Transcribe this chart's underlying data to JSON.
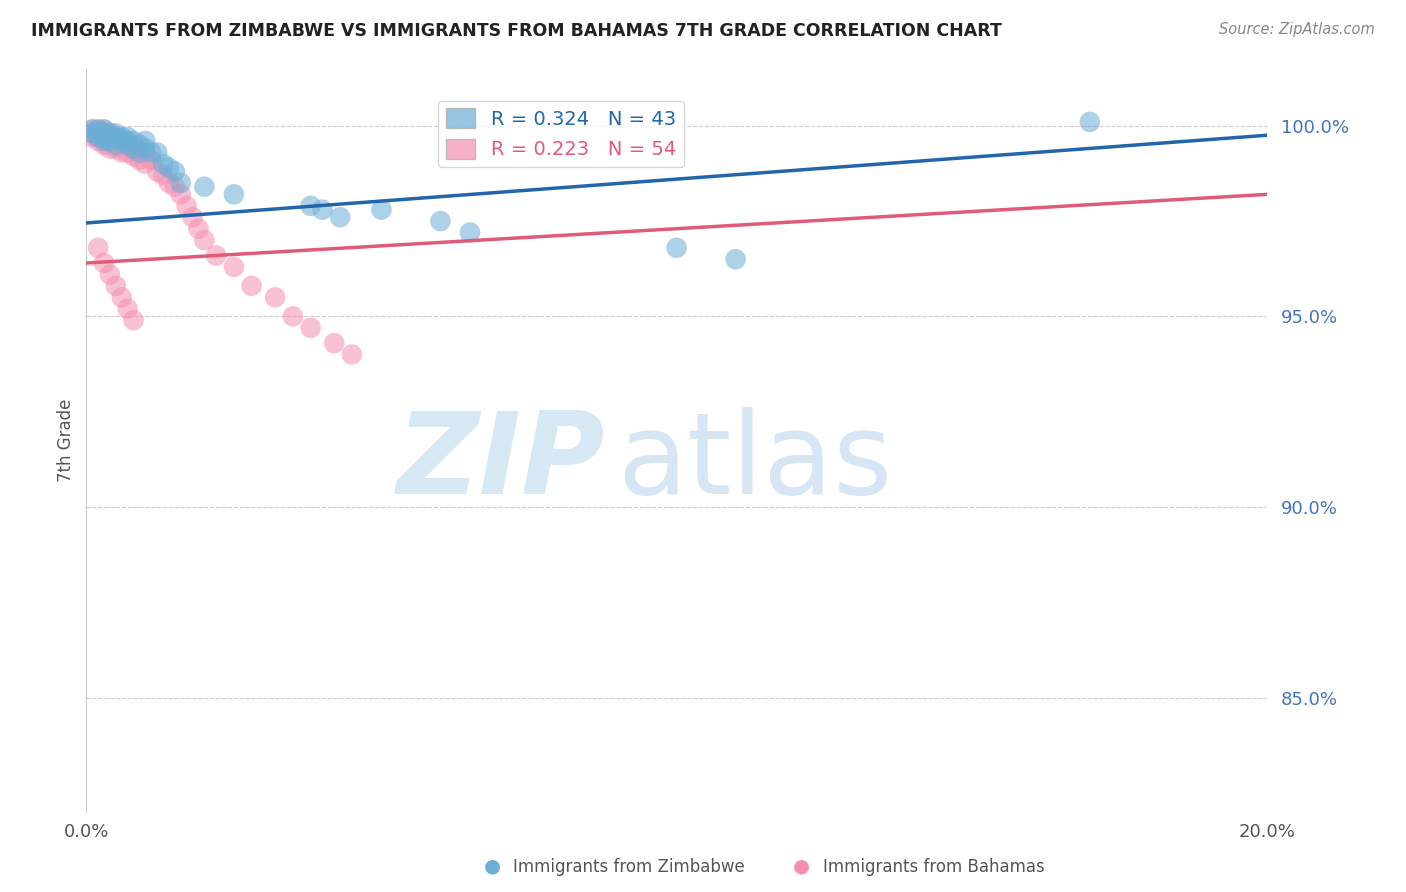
{
  "title": "IMMIGRANTS FROM ZIMBABWE VS IMMIGRANTS FROM BAHAMAS 7TH GRADE CORRELATION CHART",
  "source": "Source: ZipAtlas.com",
  "ylabel": "7th Grade",
  "color_zim": "#6baed6",
  "color_bah": "#f48fb1",
  "line_color_zim": "#2166ac",
  "line_color_bah": "#e05a7a",
  "legend_zim": "R = 0.324   N = 43",
  "legend_bah": "R = 0.223   N = 54",
  "xlim": [
    0.0,
    0.2
  ],
  "ylim": [
    0.82,
    1.015
  ],
  "yticks": [
    0.85,
    0.9,
    0.95,
    1.0
  ],
  "ytick_labels": [
    "85.0%",
    "90.0%",
    "95.0%",
    "100.0%"
  ],
  "zim_x": [
    0.001,
    0.001,
    0.002,
    0.002,
    0.002,
    0.003,
    0.003,
    0.003,
    0.003,
    0.004,
    0.004,
    0.004,
    0.005,
    0.005,
    0.005,
    0.006,
    0.006,
    0.007,
    0.007,
    0.007,
    0.008,
    0.008,
    0.009,
    0.009,
    0.01,
    0.01,
    0.011,
    0.012,
    0.013,
    0.014,
    0.015,
    0.016,
    0.02,
    0.025,
    0.038,
    0.04,
    0.043,
    0.05,
    0.06,
    0.065,
    0.1,
    0.11,
    0.17
  ],
  "zim_y": [
    0.999,
    0.998,
    0.999,
    0.998,
    0.997,
    0.999,
    0.998,
    0.997,
    0.996,
    0.998,
    0.997,
    0.996,
    0.998,
    0.997,
    0.995,
    0.997,
    0.996,
    0.997,
    0.996,
    0.995,
    0.996,
    0.994,
    0.995,
    0.993,
    0.996,
    0.994,
    0.993,
    0.993,
    0.99,
    0.989,
    0.988,
    0.985,
    0.984,
    0.982,
    0.979,
    0.978,
    0.976,
    0.978,
    0.975,
    0.972,
    0.968,
    0.965,
    1.001
  ],
  "bah_x": [
    0.001,
    0.001,
    0.001,
    0.002,
    0.002,
    0.002,
    0.002,
    0.003,
    0.003,
    0.003,
    0.003,
    0.004,
    0.004,
    0.004,
    0.004,
    0.005,
    0.005,
    0.005,
    0.006,
    0.006,
    0.006,
    0.007,
    0.007,
    0.008,
    0.008,
    0.009,
    0.009,
    0.01,
    0.01,
    0.011,
    0.012,
    0.013,
    0.014,
    0.015,
    0.016,
    0.017,
    0.018,
    0.019,
    0.02,
    0.022,
    0.025,
    0.028,
    0.032,
    0.035,
    0.038,
    0.042,
    0.045,
    0.002,
    0.003,
    0.004,
    0.005,
    0.006,
    0.007,
    0.008
  ],
  "bah_y": [
    0.999,
    0.998,
    0.997,
    0.999,
    0.998,
    0.997,
    0.996,
    0.999,
    0.998,
    0.997,
    0.995,
    0.998,
    0.997,
    0.996,
    0.994,
    0.997,
    0.996,
    0.994,
    0.996,
    0.995,
    0.993,
    0.995,
    0.993,
    0.994,
    0.992,
    0.993,
    0.991,
    0.993,
    0.99,
    0.991,
    0.988,
    0.987,
    0.985,
    0.984,
    0.982,
    0.979,
    0.976,
    0.973,
    0.97,
    0.966,
    0.963,
    0.958,
    0.955,
    0.95,
    0.947,
    0.943,
    0.94,
    0.968,
    0.964,
    0.961,
    0.958,
    0.955,
    0.952,
    0.949
  ],
  "zim_line_x": [
    0.0,
    0.2
  ],
  "zim_line_y": [
    0.9745,
    0.9975
  ],
  "bah_line_x": [
    0.0,
    0.2
  ],
  "bah_line_y": [
    0.964,
    0.982
  ]
}
